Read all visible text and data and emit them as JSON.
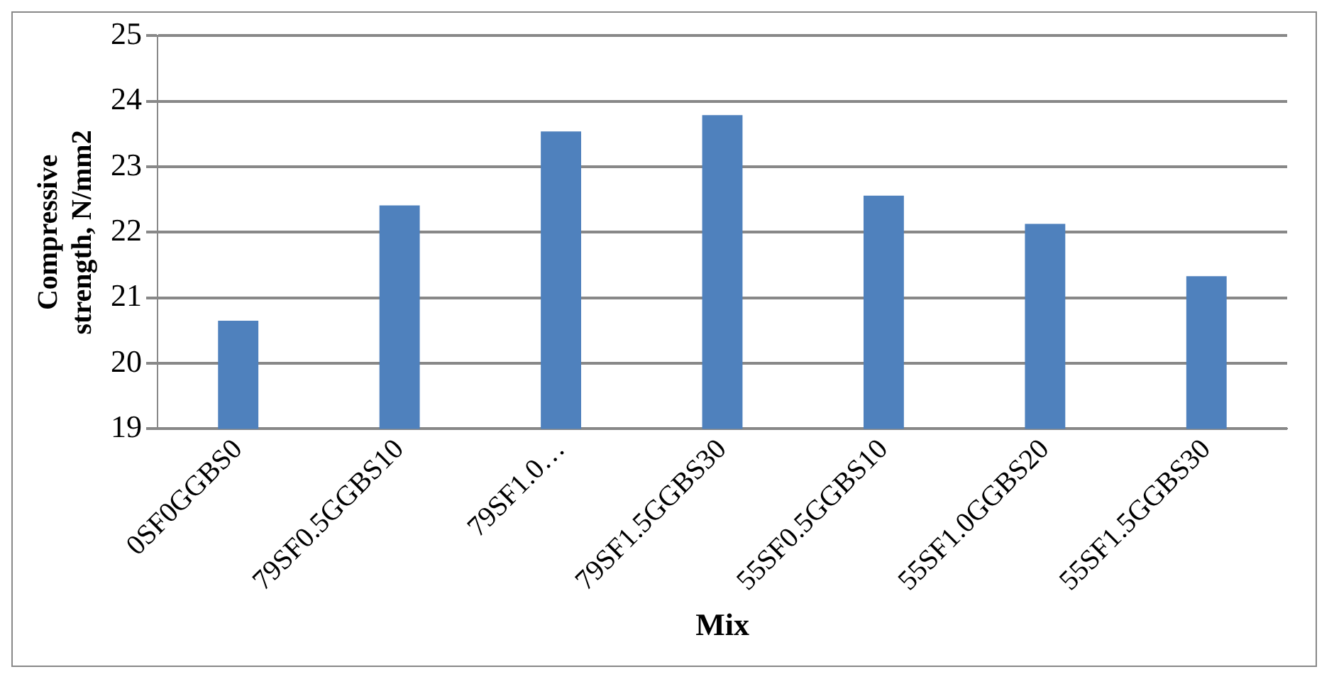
{
  "chart_data": {
    "type": "bar",
    "xlabel": "Mix",
    "ylabel": "Compressive strength, N/mm2",
    "categories": [
      "0SF0GGBS0",
      "79SF0.5GGBS10",
      "79SF1.0…",
      "79SF1.5GGBS30",
      "55SF0.5GGBS10",
      "55SF1.0GGBS20",
      "55SF1.5GGBS30"
    ],
    "values": [
      20.65,
      22.41,
      23.54,
      23.79,
      22.56,
      22.13,
      21.33
    ],
    "color": "#4f81bd",
    "ylim": [
      19,
      25
    ],
    "yticks": [
      19,
      20,
      21,
      22,
      23,
      24,
      25
    ],
    "grid": "y",
    "legend": false
  }
}
